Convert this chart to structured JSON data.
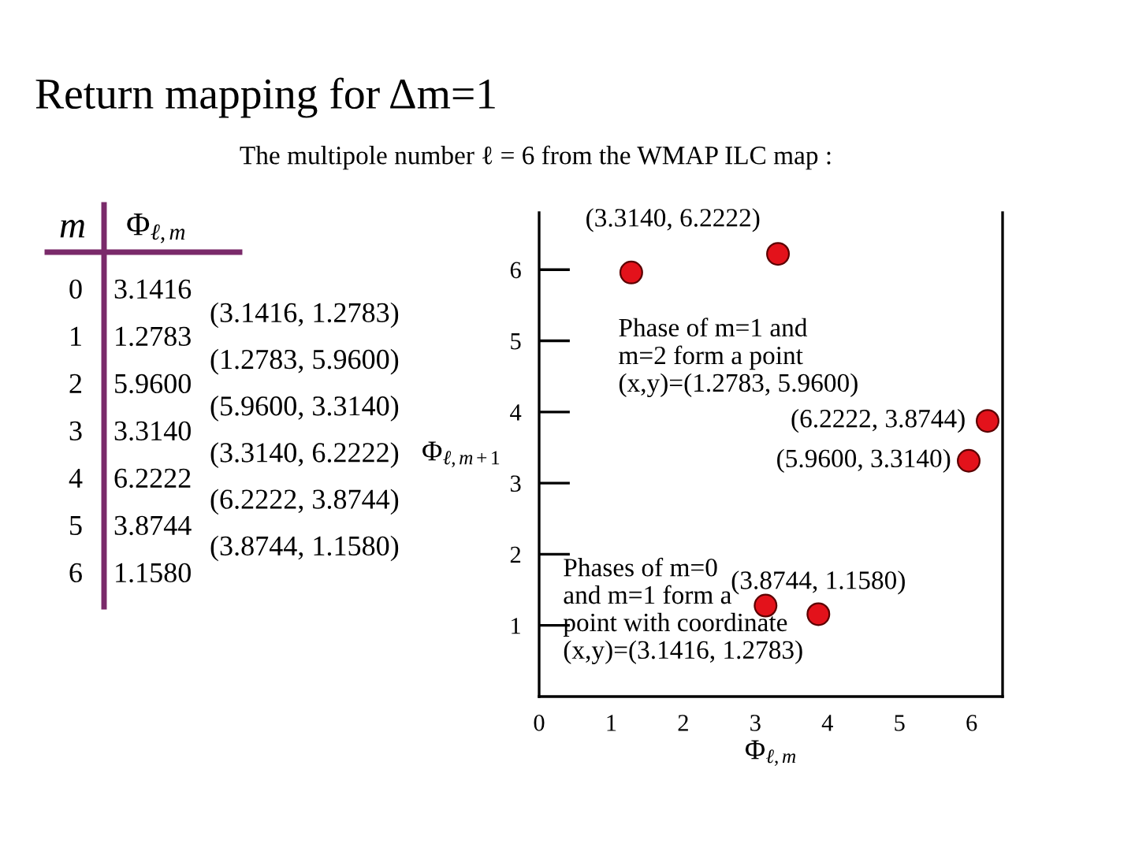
{
  "chart_data": {
    "type": "scatter",
    "title": "Return mapping for Δm=1",
    "subtitle": "The multipole number ℓ = 6 from the WMAP ILC map :",
    "xlabel": "Φ$_{ℓ,m}$",
    "ylabel": "Φ$_{ℓ,m+1}$",
    "x": [
      3.1416,
      1.2783,
      5.96,
      3.314,
      6.2222,
      3.8744
    ],
    "series": [
      {
        "color": "#e3121b",
        "values": [
          1.2783,
          5.96,
          3.314,
          6.2222,
          3.8744,
          1.158
        ],
        "value_labels": [
          null,
          null,
          "(5.9600, 3.3140)",
          "(3.3140, 6.2222)",
          "(6.2222, 3.8744)",
          "(3.8744, 1.1580)"
        ]
      }
    ],
    "marker": "circle",
    "xlim": [
      0,
      6.43
    ],
    "xticks": [
      0,
      1,
      2,
      3,
      4,
      5,
      6
    ],
    "ylim": [
      0,
      6.8
    ],
    "yticks": [
      1,
      2,
      3,
      4,
      5,
      6
    ],
    "grid": false,
    "legend": false,
    "annotations": [
      "m",
      "Φ$_{ℓ,m}$",
      "0",
      "3.1416",
      "1",
      "1.2783",
      "2",
      "5.9600",
      "3",
      "3.3140",
      "4",
      "6.2222",
      "5",
      "3.8744",
      "6",
      "1.1580",
      "(3.1416, 1.2783)",
      "(1.2783, 5.9600)",
      "(5.9600, 3.3140)",
      "(3.3140, 6.2222)",
      "(6.2222, 3.8744)",
      "(3.8744, 1.1580)",
      {
        "text": "Phase of m=1 and\nm=2 form a point\n(x,y)=(1.2783, 5.9600)",
        "x": 1.2783,
        "y": 5.96
      },
      {
        "text": "Phases of m=0\nand m=1 form a\npoint with coordinate\n(x,y)=(3.1416, 1.2783)",
        "x": 3.1416,
        "y": 1.2783
      }
    ]
  }
}
